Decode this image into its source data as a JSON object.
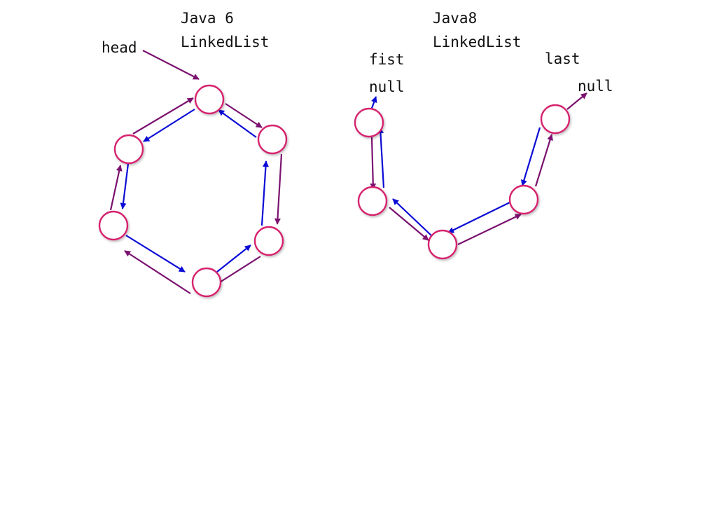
{
  "colors": {
    "node_stroke": "#d6246e",
    "next_arrow": "#7b1270",
    "prev_arrow": "#0b0bd6",
    "text": "#111111"
  },
  "java6": {
    "title_line1": "Java 6",
    "title_line2": "LinkedList",
    "head_label": "head"
  },
  "java8": {
    "title_line1": "Java8",
    "title_line2": "LinkedList",
    "first_label": "fist",
    "first_null": "null",
    "last_label": "last",
    "last_null": "null"
  }
}
